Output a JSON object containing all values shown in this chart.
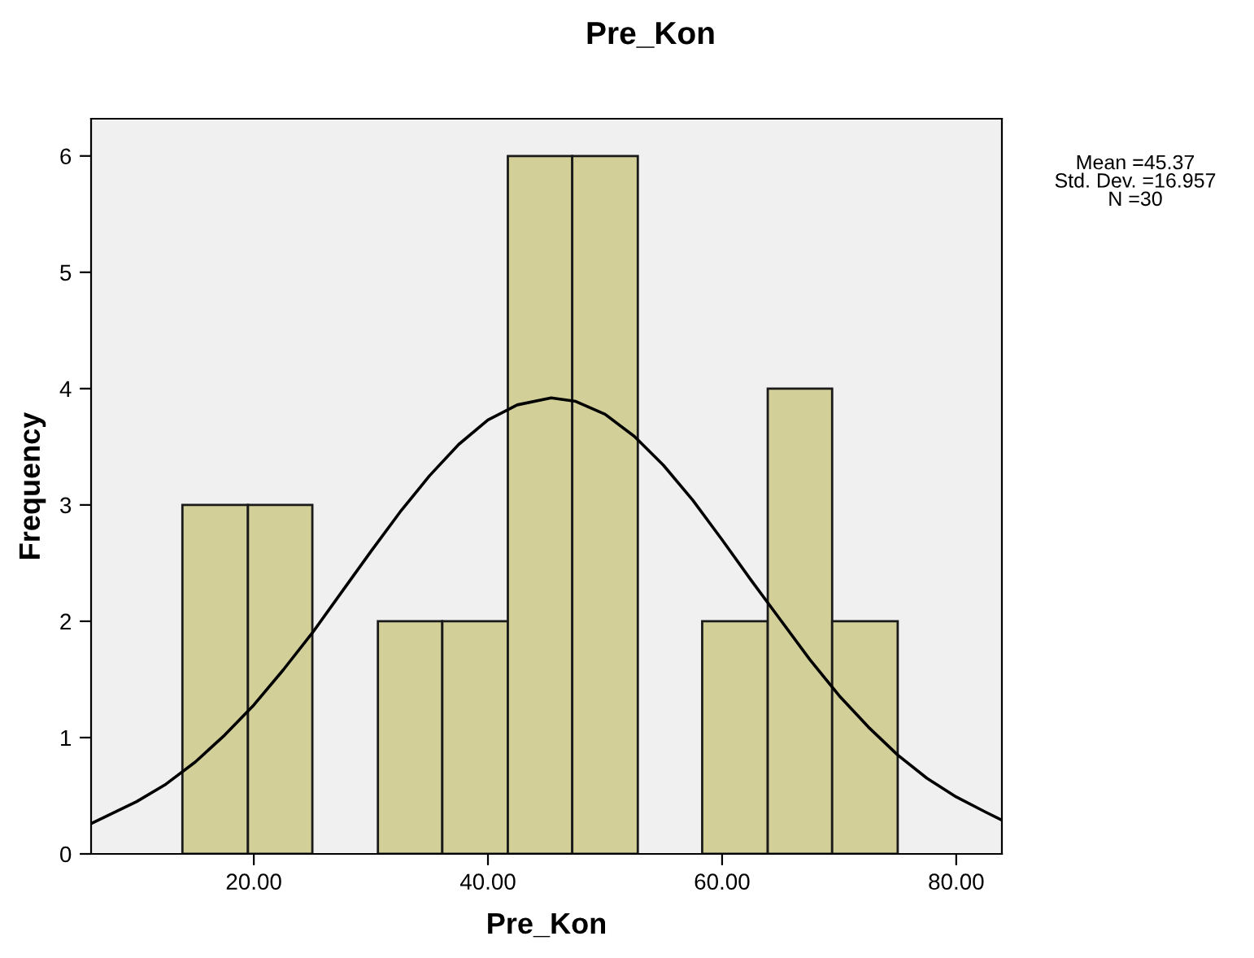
{
  "chart_data": {
    "type": "histogram",
    "title": "Pre_Kon",
    "xlabel": "Pre_Kon",
    "ylabel": "Frequency",
    "bins": [
      13.9,
      19.5,
      25.0,
      30.6,
      36.1,
      41.7,
      47.2,
      52.8,
      58.3,
      63.9,
      69.4,
      75.0
    ],
    "values": [
      3,
      3,
      0,
      2,
      2,
      6,
      6,
      0,
      2,
      4,
      2
    ],
    "color": "#d3cf98",
    "series": [
      {
        "type": "line",
        "color": "#000000",
        "x": [
          6.1,
          10,
          12.5,
          15,
          17.5,
          20,
          22.5,
          25,
          27.5,
          30,
          32.5,
          35,
          37.5,
          40,
          42.5,
          45.4,
          47.5,
          50,
          52.5,
          55,
          57.5,
          60,
          62.5,
          65,
          67.5,
          70,
          72.5,
          75,
          77.5,
          80,
          82.5,
          83.9
        ],
        "values": [
          0.26,
          0.45,
          0.6,
          0.79,
          1.02,
          1.28,
          1.58,
          1.9,
          2.25,
          2.6,
          2.94,
          3.25,
          3.52,
          3.73,
          3.86,
          3.92,
          3.89,
          3.78,
          3.59,
          3.34,
          3.04,
          2.7,
          2.35,
          2.01,
          1.67,
          1.36,
          1.09,
          0.85,
          0.65,
          0.49,
          0.36,
          0.29
        ]
      }
    ],
    "xlim": [
      6.1,
      83.9
    ],
    "ylim": [
      0,
      6.32
    ],
    "xticks": [
      {
        "value": 20,
        "label": "20.00"
      },
      {
        "value": 40,
        "label": "40.00"
      },
      {
        "value": 60,
        "label": "60.00"
      },
      {
        "value": 80,
        "label": "80.00"
      }
    ],
    "yticks": [
      0,
      1,
      2,
      3,
      4,
      5,
      6
    ],
    "annotations": [
      "Mean =45.37\nStd. Dev. =16.957\nN =30"
    ],
    "grid": false,
    "legend": false
  }
}
